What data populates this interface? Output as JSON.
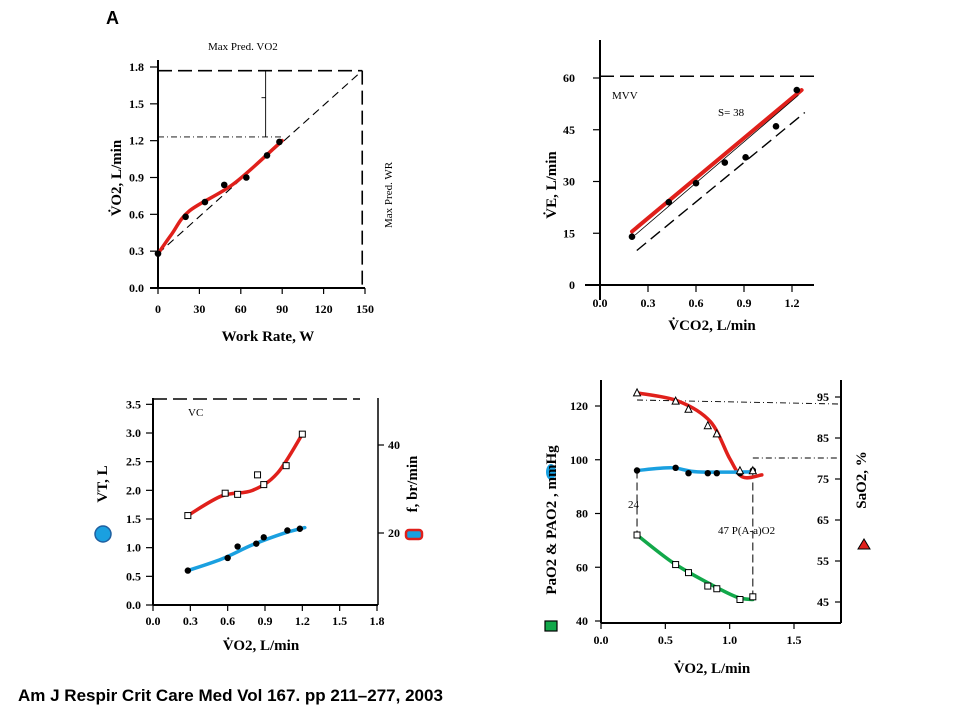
{
  "panel_label": "A",
  "citation": "Am J Respir Crit Care Med Vol 167. pp 211–277, 2003",
  "colors": {
    "red": "#e0201b",
    "blue": "#1aa0e0",
    "green": "#12a84a"
  },
  "chart_data": [
    {
      "id": "p1",
      "type": "scatter",
      "xlabel": "Work Rate, W",
      "ylabel": "V̇O2, L/min",
      "xlim": [
        0,
        150
      ],
      "ylim": [
        0,
        1.8
      ],
      "xticks": [
        0,
        30,
        60,
        90,
        120,
        150
      ],
      "yticks": [
        0.0,
        0.3,
        0.6,
        0.9,
        1.2,
        1.5,
        1.8
      ],
      "ytick_labels": [
        "0.0",
        "0.3",
        "0.6",
        "0.9",
        "1.2",
        "1.5",
        "1.8"
      ],
      "annotations": {
        "max_pred_vo2": "Max Pred. VO2",
        "max_pred_wr": "Max Pred. WR"
      },
      "max_pred_vo2": 1.77,
      "max_pred_wr": 148,
      "peak_vo2": 1.23,
      "points": [
        {
          "x": 0,
          "y": 0.28
        },
        {
          "x": 20,
          "y": 0.58
        },
        {
          "x": 34,
          "y": 0.7
        },
        {
          "x": 48,
          "y": 0.84
        },
        {
          "x": 64,
          "y": 0.9
        },
        {
          "x": 79,
          "y": 1.08
        },
        {
          "x": 88,
          "y": 1.19
        }
      ],
      "fit": [
        {
          "x": 0,
          "y": 0.28
        },
        {
          "x": 10,
          "y": 0.44
        },
        {
          "x": 23,
          "y": 0.63
        },
        {
          "x": 55,
          "y": 0.85
        },
        {
          "x": 90,
          "y": 1.2
        }
      ],
      "pred_line": [
        {
          "x": 0,
          "y": 0.28
        },
        {
          "x": 148,
          "y": 1.77
        }
      ]
    },
    {
      "id": "p2",
      "type": "scatter",
      "xlabel": "V̇CO2, L/min",
      "ylabel": "V̇E, L/min",
      "xlim": [
        0,
        1.3
      ],
      "ylim": [
        0,
        66
      ],
      "xticks": [
        0.0,
        0.3,
        0.6,
        0.9,
        1.2
      ],
      "xtick_labels": [
        "0.0",
        "0.3",
        "0.6",
        "0.9",
        "1.2"
      ],
      "yticks": [
        0,
        15,
        30,
        45,
        60
      ],
      "annotations": {
        "mvv": "MVV",
        "slope": "S= 38"
      },
      "mvv": 60.5,
      "points": [
        {
          "x": 0.2,
          "y": 14
        },
        {
          "x": 0.43,
          "y": 24
        },
        {
          "x": 0.6,
          "y": 29.5
        },
        {
          "x": 0.78,
          "y": 35.5
        },
        {
          "x": 0.91,
          "y": 37
        },
        {
          "x": 1.1,
          "y": 46
        },
        {
          "x": 1.23,
          "y": 56.5
        }
      ],
      "fit": [
        {
          "x": 0.2,
          "y": 15.5
        },
        {
          "x": 1.26,
          "y": 56.5
        }
      ],
      "ref_line": [
        {
          "x": 0.23,
          "y": 10
        },
        {
          "x": 1.28,
          "y": 50
        }
      ]
    },
    {
      "id": "p3",
      "type": "scatter",
      "xlabel": "V̇O2, L/min",
      "ylabel": "VT, L",
      "ylabel2": "f, br/min",
      "xlim": [
        0,
        1.8
      ],
      "ylim": [
        0,
        3.6
      ],
      "xticks": [
        0.0,
        0.3,
        0.6,
        0.9,
        1.2,
        1.5,
        1.8
      ],
      "xtick_labels": [
        "0.0",
        "0.3",
        "0.6",
        "0.9",
        "1.2",
        "1.5",
        "1.8"
      ],
      "yticks": [
        0.0,
        0.5,
        1.0,
        1.5,
        2.0,
        2.5,
        3.0,
        3.5
      ],
      "ytick_labels": [
        "0.0",
        "0.5",
        "1.0",
        "1.5",
        "2.0",
        "2.5",
        "3.0",
        "3.5"
      ],
      "y2ticks": [
        20,
        40
      ],
      "annotations": {
        "vc": "VC"
      },
      "vc": 3.6,
      "vt_points": [
        {
          "x": 0.28,
          "y": 0.6
        },
        {
          "x": 0.6,
          "y": 0.82
        },
        {
          "x": 0.68,
          "y": 1.02
        },
        {
          "x": 0.83,
          "y": 1.07
        },
        {
          "x": 0.89,
          "y": 1.18
        },
        {
          "x": 1.08,
          "y": 1.3
        },
        {
          "x": 1.18,
          "y": 1.33
        }
      ],
      "vt_fit": [
        {
          "x": 0.28,
          "y": 0.6
        },
        {
          "x": 0.55,
          "y": 0.8
        },
        {
          "x": 0.8,
          "y": 1.05
        },
        {
          "x": 1.05,
          "y": 1.25
        },
        {
          "x": 1.22,
          "y": 1.35
        }
      ],
      "f_points": [
        {
          "x": 0.28,
          "y": 1.56
        },
        {
          "x": 0.58,
          "y": 1.95
        },
        {
          "x": 0.68,
          "y": 1.93
        },
        {
          "x": 0.84,
          "y": 2.27
        },
        {
          "x": 0.89,
          "y": 2.1
        },
        {
          "x": 1.07,
          "y": 2.43
        },
        {
          "x": 1.2,
          "y": 2.98
        }
      ],
      "f_fit": [
        {
          "x": 0.28,
          "y": 1.56
        },
        {
          "x": 0.55,
          "y": 1.9
        },
        {
          "x": 0.8,
          "y": 2.0
        },
        {
          "x": 1.0,
          "y": 2.3
        },
        {
          "x": 1.2,
          "y": 2.98
        }
      ]
    },
    {
      "id": "p4",
      "type": "scatter",
      "xlabel": "V̇O2, L/min",
      "ylabel": "PaO2 & PAO2 , mmHg",
      "ylabel2": "SaO2, %",
      "xlim": [
        0,
        1.5
      ],
      "ylim": [
        40,
        128
      ],
      "xticks": [
        0.0,
        0.5,
        1.0,
        1.5
      ],
      "xtick_labels": [
        "0.0",
        "0.5",
        "1.0",
        "1.5"
      ],
      "yticks": [
        40,
        60,
        80,
        100,
        120
      ],
      "y2ticks": [
        45,
        55,
        65,
        75,
        85,
        95
      ],
      "annotations": {
        "gap_start": "24",
        "gap_end": "47  P(A-a)O2"
      },
      "pao2_points": [
        {
          "x": 0.28,
          "y": 72
        },
        {
          "x": 0.58,
          "y": 61
        },
        {
          "x": 0.68,
          "y": 58
        },
        {
          "x": 0.83,
          "y": 53
        },
        {
          "x": 0.9,
          "y": 52
        },
        {
          "x": 1.08,
          "y": 48
        },
        {
          "x": 1.18,
          "y": 49
        }
      ],
      "pao2_fit": [
        {
          "x": 0.28,
          "y": 72
        },
        {
          "x": 0.55,
          "y": 62
        },
        {
          "x": 0.8,
          "y": 55
        },
        {
          "x": 1.05,
          "y": 49
        },
        {
          "x": 1.18,
          "y": 48
        }
      ],
      "PAO2_points": [
        {
          "x": 0.28,
          "y": 96
        },
        {
          "x": 0.58,
          "y": 97
        },
        {
          "x": 0.68,
          "y": 95
        },
        {
          "x": 0.83,
          "y": 95
        },
        {
          "x": 0.9,
          "y": 95
        },
        {
          "x": 1.08,
          "y": 95
        },
        {
          "x": 1.18,
          "y": 96
        }
      ],
      "PAO2_fit": [
        {
          "x": 0.28,
          "y": 96
        },
        {
          "x": 0.55,
          "y": 97
        },
        {
          "x": 0.75,
          "y": 95.5
        },
        {
          "x": 1.18,
          "y": 95.5
        }
      ],
      "sao2_points": [
        {
          "x": 0.28,
          "y": 96
        },
        {
          "x": 0.58,
          "y": 94
        },
        {
          "x": 0.68,
          "y": 92
        },
        {
          "x": 0.83,
          "y": 88
        },
        {
          "x": 0.9,
          "y": 86
        },
        {
          "x": 1.08,
          "y": 77
        },
        {
          "x": 1.18,
          "y": 77
        }
      ],
      "sao2_fit": [
        {
          "x": 0.28,
          "y": 96
        },
        {
          "x": 0.6,
          "y": 94
        },
        {
          "x": 0.85,
          "y": 89
        },
        {
          "x": 1.0,
          "y": 80
        },
        {
          "x": 1.1,
          "y": 75.5
        },
        {
          "x": 1.25,
          "y": 76
        }
      ]
    }
  ]
}
